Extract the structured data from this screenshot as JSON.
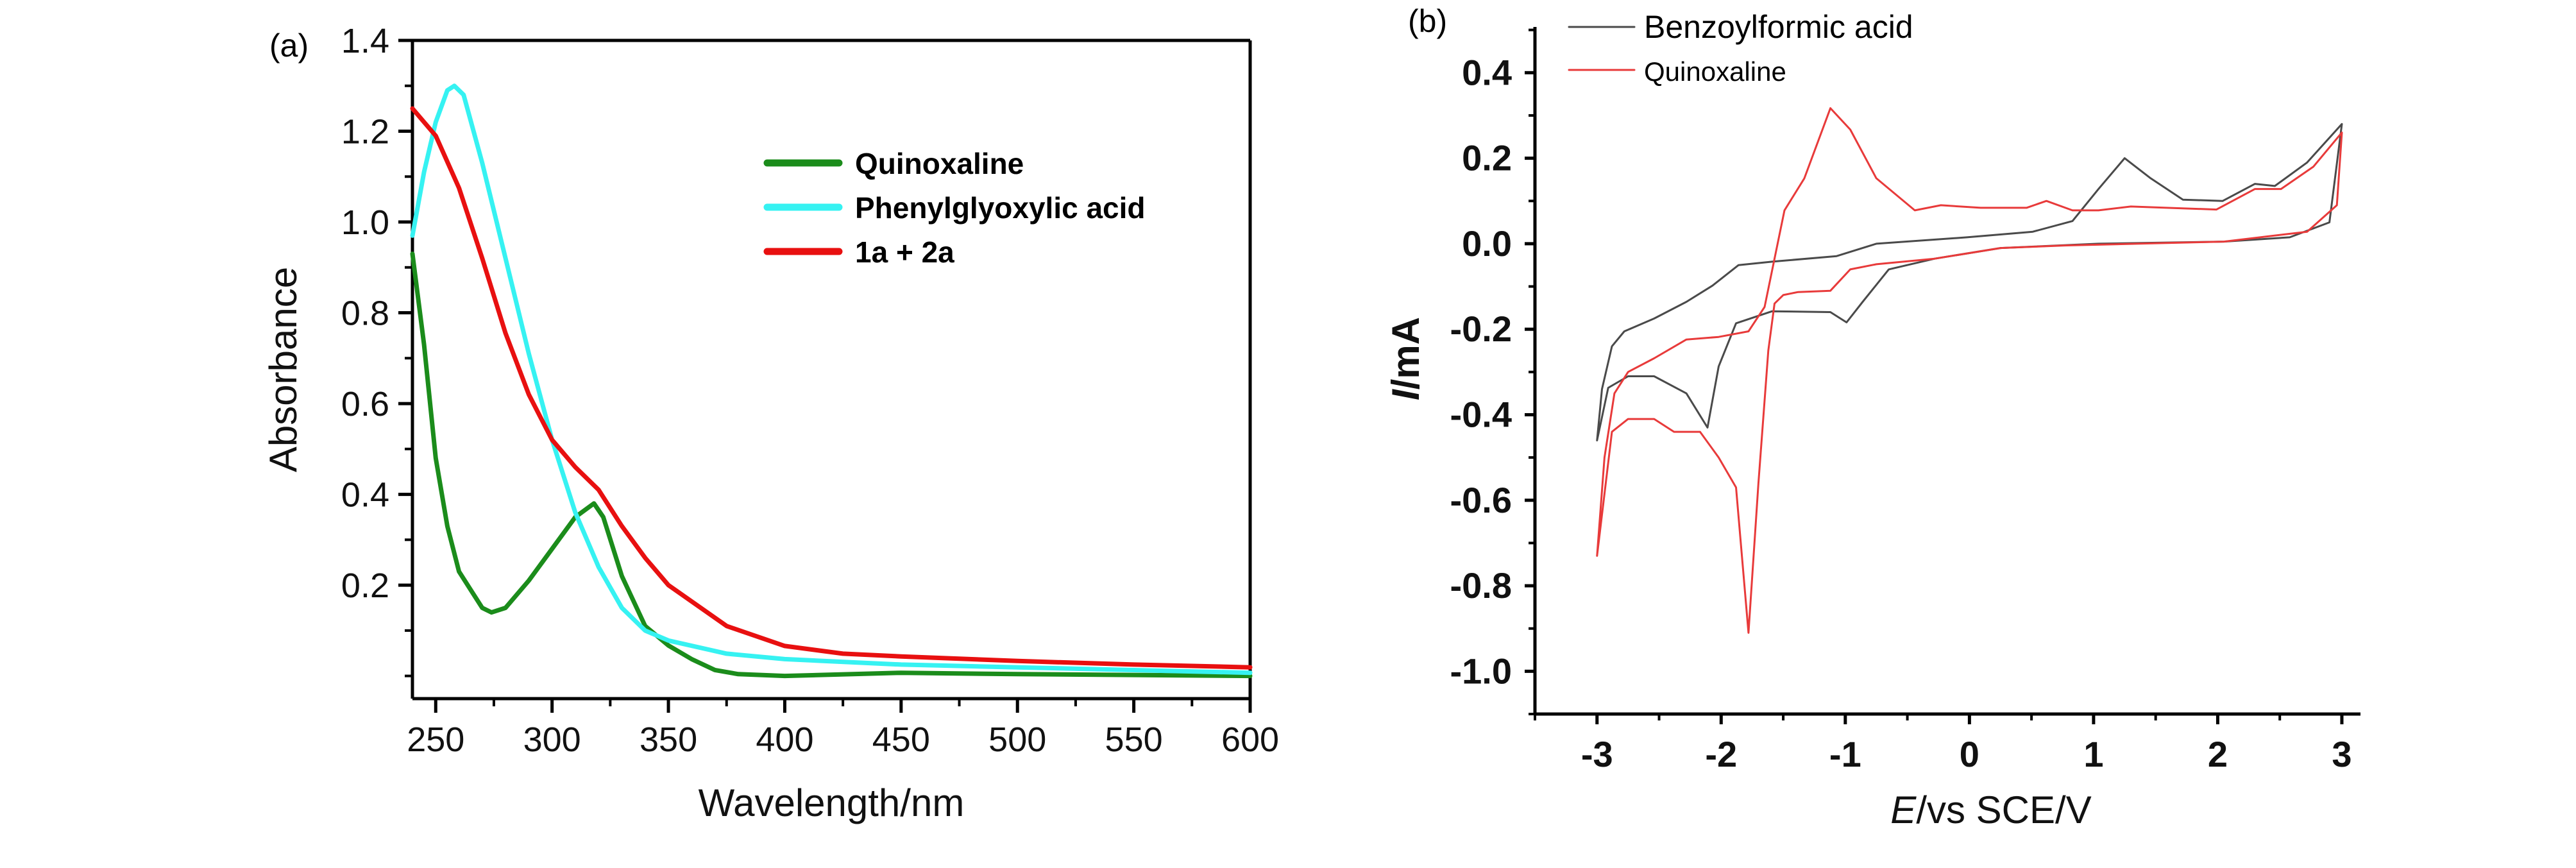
{
  "chart_data": [
    {
      "panel_label": "(a)",
      "type": "line",
      "xlabel": "Wavelength/nm",
      "ylabel": "Absorbance",
      "xlim": [
        240,
        600
      ],
      "ylim": [
        -0.05,
        1.4
      ],
      "xticks": [
        "250",
        "300",
        "350",
        "400",
        "450",
        "500",
        "550",
        "600"
      ],
      "yticks": [
        "0.2",
        "0.4",
        "0.6",
        "0.8",
        "1.0",
        "1.2",
        "1.4"
      ],
      "grid": false,
      "legend_position": "upper-right-center",
      "series": [
        {
          "name": "Quinoxaline",
          "color": "#1b8c1b",
          "x": [
            240,
            245,
            250,
            255,
            260,
            265,
            270,
            274,
            280,
            290,
            300,
            310,
            318,
            322,
            330,
            340,
            350,
            360,
            370,
            380,
            400,
            450,
            500,
            600
          ],
          "y": [
            0.93,
            0.73,
            0.48,
            0.33,
            0.23,
            0.19,
            0.15,
            0.14,
            0.15,
            0.21,
            0.28,
            0.35,
            0.38,
            0.35,
            0.22,
            0.11,
            0.067,
            0.037,
            0.013,
            0.004,
            0.0,
            0.007,
            0.004,
            0.0
          ]
        },
        {
          "name": "Phenylglyoxylic acid",
          "color": "#36f2f2",
          "x": [
            240,
            245,
            250,
            255,
            258,
            262,
            270,
            280,
            290,
            300,
            310,
            320,
            330,
            340,
            350,
            375,
            400,
            450,
            500,
            600
          ],
          "y": [
            0.97,
            1.11,
            1.22,
            1.29,
            1.3,
            1.28,
            1.13,
            0.92,
            0.71,
            0.52,
            0.36,
            0.24,
            0.15,
            0.1,
            0.078,
            0.049,
            0.037,
            0.025,
            0.019,
            0.007
          ]
        },
        {
          "name": "1a + 2a",
          "color": "#e81010",
          "x": [
            240,
            250,
            260,
            270,
            280,
            290,
            300,
            310,
            320,
            330,
            340,
            350,
            375,
            400,
            425,
            450,
            500,
            550,
            600
          ],
          "y": [
            1.25,
            1.19,
            1.075,
            0.92,
            0.755,
            0.62,
            0.52,
            0.46,
            0.41,
            0.33,
            0.26,
            0.2,
            0.11,
            0.066,
            0.049,
            0.043,
            0.033,
            0.025,
            0.019
          ]
        }
      ]
    },
    {
      "panel_label": "(b)",
      "type": "line",
      "xlabel": {
        "italic": "E",
        "rest": "/vs SCE/V"
      },
      "ylabel": {
        "italic": "I",
        "rest": "/mA"
      },
      "xlim": [
        -3.5,
        3.15
      ],
      "ylim": [
        -1.1,
        0.507
      ],
      "xticks": [
        "-3",
        "-2",
        "-1",
        "0",
        "1",
        "2",
        "3"
      ],
      "yticks": [
        "0.4",
        "0.2",
        "0.0",
        "-0.2",
        "-0.4",
        "-0.6",
        "-0.8",
        "-1.0"
      ],
      "grid": false,
      "legend_position": "top-left",
      "series": [
        {
          "name": "Benzoylformic acid",
          "color": "#4a4a4a",
          "x": [
            -3,
            -2.96,
            -2.88,
            -2.78,
            -2.54,
            -2.28,
            -2.07,
            -1.86,
            -1.59,
            -1.07,
            -0.75,
            -0.02,
            0.51,
            0.83,
            1.04,
            1.25,
            1.46,
            1.72,
            2.04,
            2.3,
            2.46,
            2.72,
            3,
            2.9,
            2.58,
            2.05,
            1.04,
            0.25,
            -0.28,
            -0.65,
            -0.86,
            -0.99,
            -1.12,
            -1.59,
            -1.88,
            -2.02,
            -2.11,
            -2.28,
            -2.54,
            -2.75,
            -2.91,
            -3
          ],
          "y": [
            -0.46,
            -0.34,
            -0.24,
            -0.205,
            -0.175,
            -0.136,
            -0.098,
            -0.05,
            -0.042,
            -0.029,
            0,
            0.015,
            0.028,
            0.053,
            0.128,
            0.2,
            0.153,
            0.103,
            0.1,
            0.14,
            0.135,
            0.19,
            0.28,
            0.05,
            0.015,
            0.005,
            0,
            -0.01,
            -0.035,
            -0.06,
            -0.136,
            -0.184,
            -0.16,
            -0.158,
            -0.186,
            -0.287,
            -0.43,
            -0.35,
            -0.31,
            -0.31,
            -0.337,
            -0.46
          ]
        },
        {
          "name": "Quinoxaline",
          "color": "#e83a3a",
          "x": [
            -3,
            -2.94,
            -2.86,
            -2.75,
            -2.54,
            -2.28,
            -2.02,
            -1.78,
            -1.65,
            -1.57,
            -1.49,
            -1.33,
            -1.12,
            -0.96,
            -0.75,
            -0.44,
            -0.23,
            0.09,
            0.46,
            0.62,
            0.83,
            1.04,
            1.3,
            1.99,
            2.3,
            2.51,
            2.77,
            3,
            2.96,
            2.72,
            2.05,
            0.77,
            0.25,
            -0.28,
            -0.75,
            -0.96,
            -1.12,
            -1.38,
            -1.5,
            -1.57,
            -1.62,
            -1.7,
            -1.78,
            -1.88,
            -2.02,
            -2.17,
            -2.38,
            -2.54,
            -2.75,
            -2.88,
            -3
          ],
          "y": [
            -0.73,
            -0.5,
            -0.35,
            -0.3,
            -0.268,
            -0.224,
            -0.218,
            -0.205,
            -0.148,
            -0.035,
            0.078,
            0.153,
            0.317,
            0.267,
            0.153,
            0.078,
            0.09,
            0.084,
            0.084,
            0.1,
            0.078,
            0.078,
            0.087,
            0.08,
            0.128,
            0.128,
            0.18,
            0.26,
            0.09,
            0.028,
            0.005,
            -0.004,
            -0.01,
            -0.035,
            -0.048,
            -0.06,
            -0.11,
            -0.113,
            -0.12,
            -0.14,
            -0.25,
            -0.56,
            -0.91,
            -0.57,
            -0.5,
            -0.44,
            -0.44,
            -0.41,
            -0.41,
            -0.44,
            -0.73
          ]
        }
      ]
    }
  ]
}
